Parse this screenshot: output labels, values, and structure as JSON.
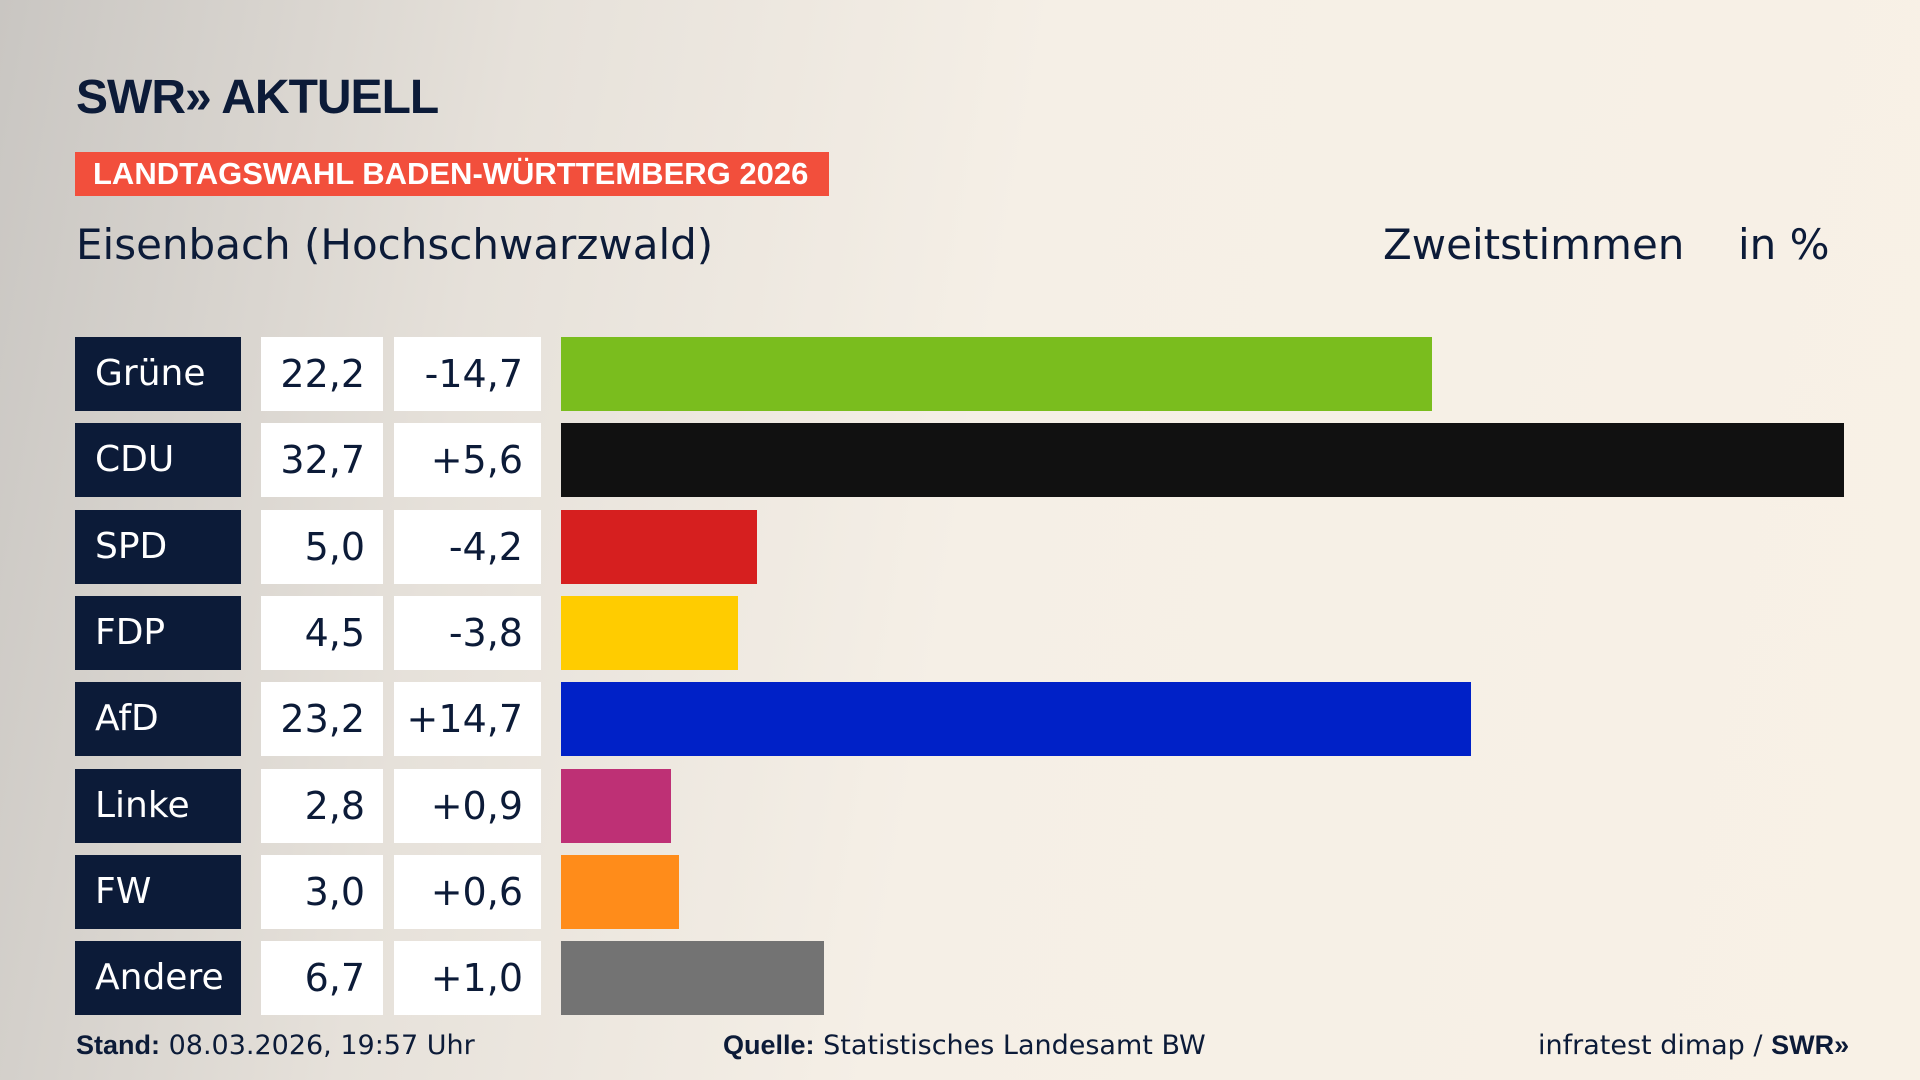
{
  "header": {
    "logo": "SWR» AKTUELL",
    "banner": "LANDTAGSWAHL BADEN-WÜRTTEMBERG 2026",
    "region": "Eisenbach (Hochschwarzwald)",
    "metric": "Zweitstimmen",
    "unit": "in %"
  },
  "chart_data": {
    "type": "bar",
    "orientation": "horizontal",
    "xlim": [
      0,
      32.7
    ],
    "categories": [
      "Grüne",
      "CDU",
      "SPD",
      "FDP",
      "AfD",
      "Linke",
      "FW",
      "Andere"
    ],
    "values": [
      22.2,
      32.7,
      5.0,
      4.5,
      23.2,
      2.8,
      3.0,
      6.7
    ],
    "value_labels": [
      "22,2",
      "32,7",
      "5,0",
      "4,5",
      "23,2",
      "2,8",
      "3,0",
      "6,7"
    ],
    "diff_labels": [
      "-14,7",
      "+5,6",
      "-4,2",
      "-3,8",
      "+14,7",
      "+0,9",
      "+0,6",
      "+1,0"
    ],
    "colors": [
      "#7abd1e",
      "#111111",
      "#d61f1f",
      "#ffcc00",
      "#0021c7",
      "#be3075",
      "#ff8c1a",
      "#737373"
    ]
  },
  "footer": {
    "stand_label": "Stand:",
    "stand_value": " 08.03.2026, 19:57 Uhr",
    "source_label": "Quelle:",
    "source_value": " Statistisches Landesamt BW",
    "credit": "infratest dimap / ",
    "credit_logo": "SWR»"
  }
}
